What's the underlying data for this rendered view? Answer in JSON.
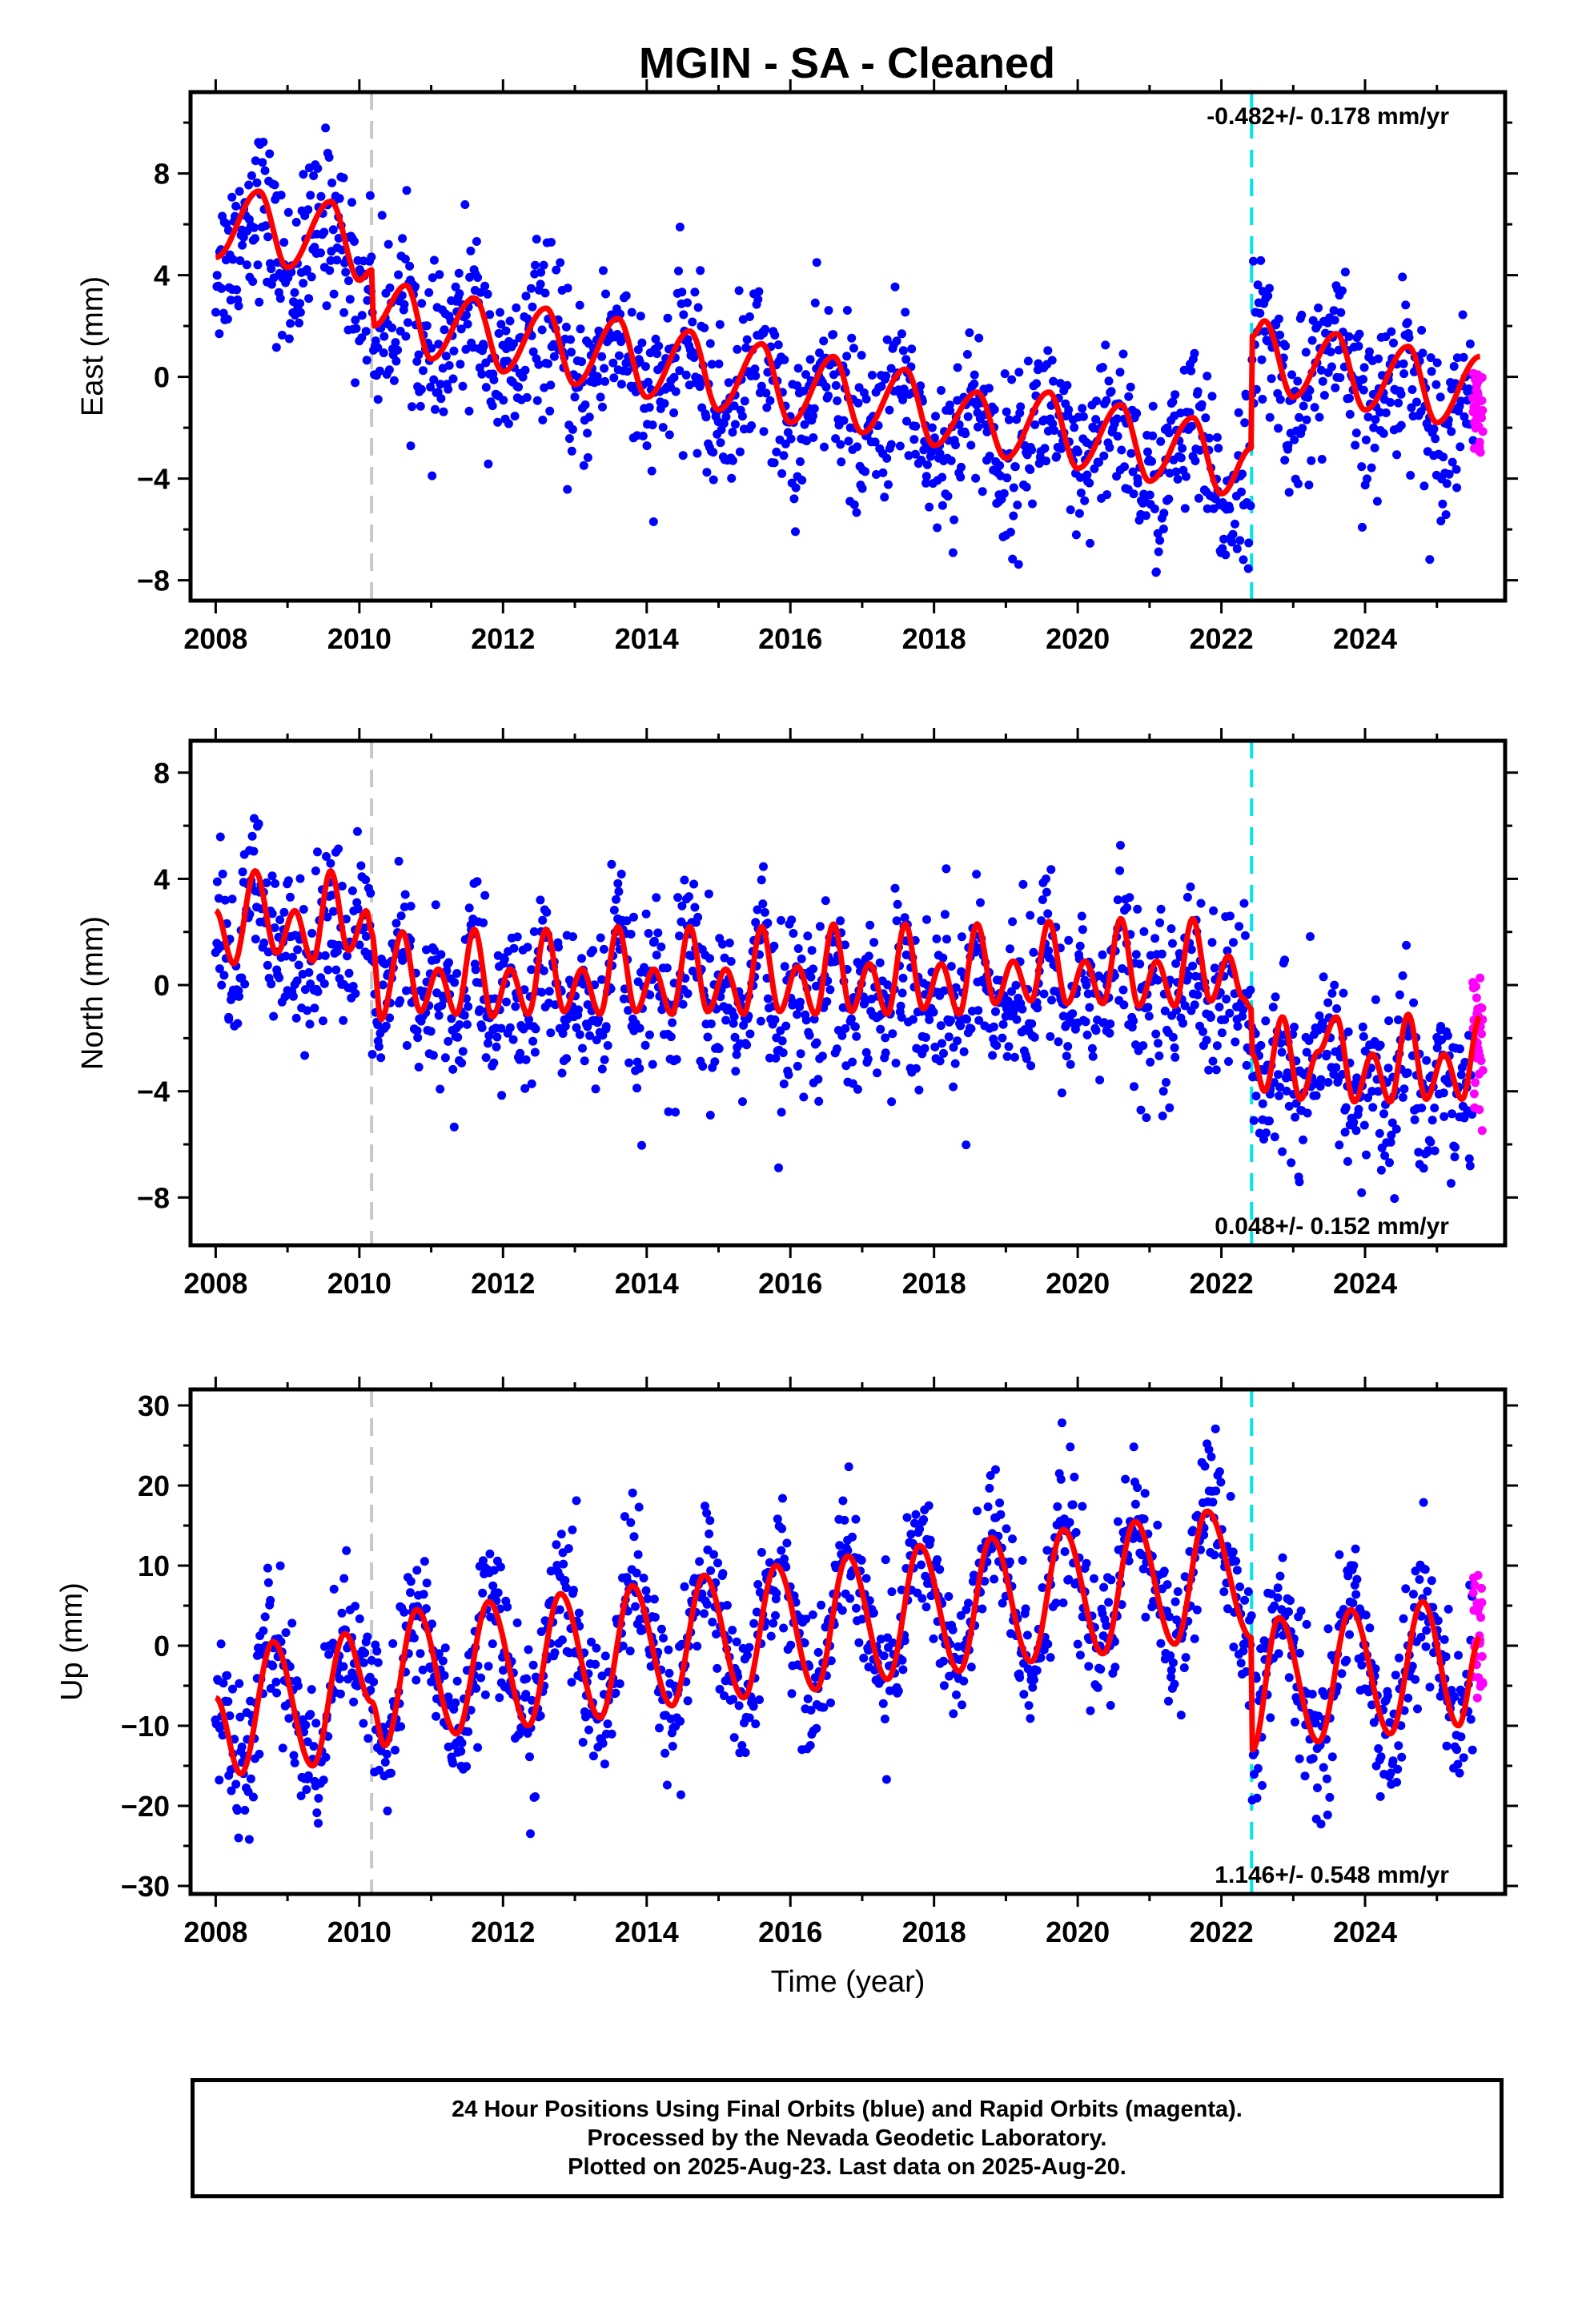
{
  "title": "MGIN  - SA - Cleaned",
  "caption": {
    "line1": "24 Hour Positions Using Final Orbits (blue) and Rapid Orbits (magenta).",
    "line2": "Processed by the Nevada Geodetic Laboratory.",
    "line3": "Plotted on 2025-Aug-23. Last data on 2025-Aug-20."
  },
  "colors": {
    "final_orbits": "#0000ff",
    "rapid_orbits": "#ff00ff",
    "model_fit": "#ff0000",
    "event_gray": "#c8c8c8",
    "event_cyan": "#00e5ee"
  },
  "chart_data": [
    {
      "type": "scatter",
      "panel": "east",
      "ylabel": "East (mm)",
      "xlabel": "",
      "xlim": [
        2007.65,
        2025.95
      ],
      "ylim": [
        -8.8,
        11.2
      ],
      "xticks": [
        2008,
        2010,
        2012,
        2014,
        2016,
        2018,
        2020,
        2022,
        2024
      ],
      "yticks": [
        -8,
        -4,
        0,
        4,
        8
      ],
      "rate_text": "-0.482+/- 0.178 mm/yr",
      "rate_position": "top-right",
      "event_lines": [
        {
          "x": 2010.17,
          "color": "gray"
        },
        {
          "x": 2022.42,
          "color": "cyan"
        }
      ],
      "model": {
        "knots": [
          [
            2008.0,
            4.7
          ],
          [
            2008.6,
            7.3
          ],
          [
            2009.0,
            4.3
          ],
          [
            2009.6,
            6.9
          ],
          [
            2010.0,
            3.8
          ],
          [
            2010.17,
            4.2
          ],
          [
            2010.2,
            2.0
          ],
          [
            2010.65,
            3.6
          ],
          [
            2011.0,
            0.7
          ],
          [
            2011.6,
            3.1
          ],
          [
            2012.0,
            0.2
          ],
          [
            2012.6,
            2.7
          ],
          [
            2013.0,
            -0.3
          ],
          [
            2013.6,
            2.3
          ],
          [
            2014.0,
            -0.8
          ],
          [
            2014.6,
            1.8
          ],
          [
            2015.0,
            -1.3
          ],
          [
            2015.6,
            1.3
          ],
          [
            2016.0,
            -1.8
          ],
          [
            2016.6,
            0.8
          ],
          [
            2017.0,
            -2.2
          ],
          [
            2017.6,
            0.3
          ],
          [
            2018.0,
            -2.7
          ],
          [
            2018.6,
            -0.6
          ],
          [
            2019.0,
            -3.2
          ],
          [
            2019.6,
            -0.6
          ],
          [
            2020.0,
            -3.6
          ],
          [
            2020.6,
            -1.1
          ],
          [
            2021.0,
            -4.1
          ],
          [
            2021.6,
            -1.6
          ],
          [
            2022.0,
            -4.6
          ],
          [
            2022.42,
            -2.8
          ],
          [
            2022.43,
            1.6
          ],
          [
            2022.6,
            2.2
          ],
          [
            2023.0,
            -0.8
          ],
          [
            2023.6,
            1.7
          ],
          [
            2024.0,
            -1.3
          ],
          [
            2024.6,
            1.2
          ],
          [
            2025.0,
            -1.8
          ],
          [
            2025.6,
            0.8
          ]
        ]
      },
      "scatter": {
        "final": {
          "trend_offset": -0.5,
          "noise_sd": 1.6,
          "x_start": 2008.0,
          "x_end": 2025.5
        },
        "rapid": {
          "x_start": 2025.5,
          "x_end": 2025.64,
          "y_min": -3.0,
          "y_max": 0.2
        }
      }
    },
    {
      "type": "scatter",
      "panel": "north",
      "ylabel": "North (mm)",
      "xlabel": "",
      "xlim": [
        2007.65,
        2025.95
      ],
      "ylim": [
        -9.8,
        9.2
      ],
      "xticks": [
        2008,
        2010,
        2012,
        2014,
        2016,
        2018,
        2020,
        2022,
        2024
      ],
      "yticks": [
        -8,
        -4,
        0,
        4,
        8
      ],
      "rate_text": "0.048+/- 0.152 mm/yr",
      "rate_position": "bottom-right",
      "event_lines": [
        {
          "x": 2010.17,
          "color": "gray"
        },
        {
          "x": 2022.42,
          "color": "cyan"
        }
      ],
      "model": {
        "knots": [
          [
            2008.0,
            2.8
          ],
          [
            2008.25,
            0.8
          ],
          [
            2008.55,
            4.3
          ],
          [
            2008.85,
            1.2
          ],
          [
            2009.1,
            2.8
          ],
          [
            2009.35,
            0.9
          ],
          [
            2009.6,
            4.3
          ],
          [
            2009.85,
            1.3
          ],
          [
            2010.1,
            2.8
          ],
          [
            2010.17,
            2.0
          ],
          [
            2010.3,
            -1.3
          ],
          [
            2010.6,
            2.0
          ],
          [
            2010.85,
            -1.0
          ],
          [
            2011.1,
            0.6
          ],
          [
            2011.35,
            -1.1
          ],
          [
            2011.6,
            2.1
          ],
          [
            2011.85,
            -1.2
          ],
          [
            2012.1,
            0.6
          ],
          [
            2012.35,
            -1.1
          ],
          [
            2012.6,
            2.1
          ],
          [
            2012.85,
            -1.0
          ],
          [
            2013.1,
            0.6
          ],
          [
            2013.35,
            -1.1
          ],
          [
            2013.6,
            2.2
          ],
          [
            2013.85,
            -1.0
          ],
          [
            2014.1,
            0.6
          ],
          [
            2014.35,
            -1.1
          ],
          [
            2014.6,
            2.2
          ],
          [
            2014.85,
            -1.0
          ],
          [
            2015.1,
            0.6
          ],
          [
            2015.35,
            -1.1
          ],
          [
            2015.6,
            2.2
          ],
          [
            2015.85,
            -1.0
          ],
          [
            2016.1,
            0.7
          ],
          [
            2016.35,
            -1.1
          ],
          [
            2016.6,
            2.3
          ],
          [
            2016.85,
            -1.0
          ],
          [
            2017.1,
            0.8
          ],
          [
            2017.35,
            -1.1
          ],
          [
            2017.6,
            2.3
          ],
          [
            2017.85,
            -0.9
          ],
          [
            2018.1,
            0.8
          ],
          [
            2018.35,
            -1.1
          ],
          [
            2018.6,
            2.3
          ],
          [
            2018.85,
            -0.7
          ],
          [
            2019.1,
            0.9
          ],
          [
            2019.35,
            -0.6
          ],
          [
            2019.6,
            2.4
          ],
          [
            2019.85,
            -0.7
          ],
          [
            2020.1,
            0.9
          ],
          [
            2020.35,
            -0.7
          ],
          [
            2020.6,
            2.5
          ],
          [
            2020.85,
            -0.8
          ],
          [
            2021.1,
            0.9
          ],
          [
            2021.35,
            -0.8
          ],
          [
            2021.6,
            2.5
          ],
          [
            2021.85,
            -0.6
          ],
          [
            2022.1,
            1.1
          ],
          [
            2022.3,
            -0.5
          ],
          [
            2022.42,
            -0.9
          ],
          [
            2022.43,
            -2.6
          ],
          [
            2022.6,
            -4.0
          ],
          [
            2022.85,
            -1.2
          ],
          [
            2023.1,
            -4.3
          ],
          [
            2023.35,
            -2.5
          ],
          [
            2023.6,
            -1.2
          ],
          [
            2023.85,
            -4.4
          ],
          [
            2024.1,
            -2.6
          ],
          [
            2024.35,
            -4.4
          ],
          [
            2024.6,
            -1.1
          ],
          [
            2024.85,
            -4.3
          ],
          [
            2025.1,
            -2.6
          ],
          [
            2025.35,
            -4.3
          ],
          [
            2025.6,
            -1.2
          ]
        ]
      },
      "scatter": {
        "final": {
          "trend_offset": -0.6,
          "noise_sd": 1.6,
          "x_start": 2008.0,
          "x_end": 2025.5
        },
        "rapid": {
          "x_start": 2025.5,
          "x_end": 2025.64,
          "y_min": -5.6,
          "y_max": 0.4
        }
      }
    },
    {
      "type": "scatter",
      "panel": "up",
      "ylabel": "Up (mm)",
      "xlabel": "Time (year)",
      "xlim": [
        2007.65,
        2025.95
      ],
      "ylim": [
        -31.0,
        32.0
      ],
      "xticks": [
        2008,
        2010,
        2012,
        2014,
        2016,
        2018,
        2020,
        2022,
        2024
      ],
      "yticks": [
        -30,
        -20,
        -10,
        0,
        10,
        20,
        30
      ],
      "rate_text": "1.146+/- 0.548 mm/yr",
      "rate_position": "bottom-right",
      "event_lines": [
        {
          "x": 2010.17,
          "color": "gray"
        },
        {
          "x": 2022.42,
          "color": "cyan"
        }
      ],
      "model": {
        "knots": [
          [
            2008.0,
            -6.5
          ],
          [
            2008.35,
            -16.0
          ],
          [
            2008.8,
            0.5
          ],
          [
            2009.35,
            -15.0
          ],
          [
            2009.8,
            1.5
          ],
          [
            2010.17,
            -7.0
          ],
          [
            2010.35,
            -12.5
          ],
          [
            2010.8,
            4.5
          ],
          [
            2011.35,
            -11.0
          ],
          [
            2011.8,
            5.5
          ],
          [
            2012.35,
            -10.0
          ],
          [
            2012.8,
            6.5
          ],
          [
            2013.35,
            -9.0
          ],
          [
            2013.8,
            7.5
          ],
          [
            2014.35,
            -7.5
          ],
          [
            2014.8,
            8.8
          ],
          [
            2015.35,
            -6.5
          ],
          [
            2015.8,
            10.0
          ],
          [
            2016.35,
            -5.5
          ],
          [
            2016.8,
            11.2
          ],
          [
            2017.35,
            -4.2
          ],
          [
            2017.8,
            12.5
          ],
          [
            2018.35,
            -3.2
          ],
          [
            2018.8,
            13.5
          ],
          [
            2019.35,
            -2.0
          ],
          [
            2019.8,
            14.5
          ],
          [
            2020.35,
            -1.0
          ],
          [
            2020.8,
            15.5
          ],
          [
            2021.35,
            0.2
          ],
          [
            2021.8,
            16.8
          ],
          [
            2022.42,
            1.0
          ],
          [
            2022.43,
            -13.0
          ],
          [
            2022.8,
            3.5
          ],
          [
            2023.35,
            -12.0
          ],
          [
            2023.8,
            4.5
          ],
          [
            2024.35,
            -11.0
          ],
          [
            2024.8,
            5.5
          ],
          [
            2025.3,
            -10.0
          ],
          [
            2025.6,
            1.0
          ]
        ]
      },
      "scatter": {
        "final": {
          "trend_offset": 0.0,
          "noise_sd": 4.5,
          "x_start": 2008.0,
          "x_end": 2025.5
        },
        "rapid": {
          "x_start": 2025.5,
          "x_end": 2025.64,
          "y_min": -8.0,
          "y_max": 9.0
        }
      }
    }
  ]
}
